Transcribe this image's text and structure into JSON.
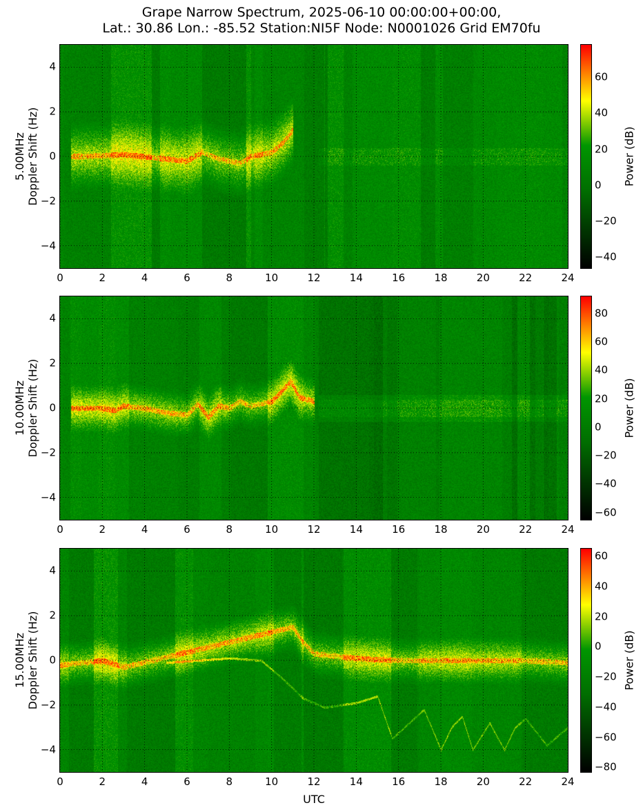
{
  "title_line1": "Grape Narrow Spectrum, 2025-06-10 00:00:00+00:00,",
  "title_line2": "Lat.: 30.86 Lon.: -85.52 Station:NI5F Node: N0001026 Grid EM70fu",
  "xlabel": "UTC",
  "colors": {
    "low": "#000000",
    "mid_low": "#006400",
    "mid": "#00a000",
    "mid_high": "#ffff00",
    "high": "#ff0000"
  },
  "chart_data": [
    {
      "type": "heatmap",
      "frequency": "5.00MHz",
      "ylabel_line1": "5.00MHz",
      "ylabel_line2": "Doppler Shift (Hz)",
      "xlim": [
        0,
        24
      ],
      "ylim": [
        -5,
        5
      ],
      "xticks": [
        "0",
        "2",
        "4",
        "6",
        "8",
        "10",
        "12",
        "14",
        "16",
        "18",
        "20",
        "22",
        "24"
      ],
      "yticks": [
        "4",
        "2",
        "0",
        "−2",
        "−4"
      ],
      "colorbar_label": "Power (dB)",
      "colorbar_range": [
        -46,
        78
      ],
      "colorbar_ticks": [
        "60",
        "40",
        "20",
        "0",
        "−20",
        "−40"
      ],
      "colorbar_tick_values": [
        60,
        40,
        20,
        0,
        -20,
        -40
      ],
      "grid": true,
      "trace": [
        [
          0.5,
          0
        ],
        [
          2,
          0.05
        ],
        [
          3,
          0.1
        ],
        [
          4,
          0
        ],
        [
          5,
          -0.1
        ],
        [
          6,
          -0.2
        ],
        [
          6.7,
          0.2
        ],
        [
          7.5,
          -0.1
        ],
        [
          8,
          -0.2
        ],
        [
          8.5,
          -0.3
        ],
        [
          9,
          0
        ],
        [
          9.5,
          0.1
        ],
        [
          10,
          0.2
        ],
        [
          10.5,
          0.6
        ],
        [
          11,
          1.2
        ]
      ],
      "activity_end_utc": 12.2
    },
    {
      "type": "heatmap",
      "frequency": "10.00MHz",
      "ylabel_line1": "10.00MHz",
      "ylabel_line2": "Doppler Shift (Hz)",
      "xlim": [
        0,
        24
      ],
      "ylim": [
        -5,
        5
      ],
      "xticks": [
        "0",
        "2",
        "4",
        "6",
        "8",
        "10",
        "12",
        "14",
        "16",
        "18",
        "20",
        "22",
        "24"
      ],
      "yticks": [
        "4",
        "2",
        "0",
        "−2",
        "−4"
      ],
      "colorbar_label": "Power (dB)",
      "colorbar_range": [
        -65,
        92
      ],
      "colorbar_ticks": [
        "80",
        "60",
        "40",
        "20",
        "0",
        "−20",
        "−40",
        "−60"
      ],
      "colorbar_tick_values": [
        80,
        60,
        40,
        20,
        0,
        -20,
        -40,
        -60
      ],
      "grid": true,
      "trace": [
        [
          0.5,
          0
        ],
        [
          2,
          0
        ],
        [
          2.6,
          -0.1
        ],
        [
          3,
          0.1
        ],
        [
          4,
          0
        ],
        [
          5,
          -0.2
        ],
        [
          6,
          -0.3
        ],
        [
          6.5,
          0.2
        ],
        [
          7,
          -0.4
        ],
        [
          7.5,
          0.1
        ],
        [
          8,
          0
        ],
        [
          8.5,
          0.3
        ],
        [
          9,
          0.1
        ],
        [
          10,
          0.3
        ],
        [
          10.9,
          1.2
        ],
        [
          11.3,
          0.5
        ],
        [
          12,
          0.3
        ]
      ],
      "activity_end_utc": 12.2
    },
    {
      "type": "heatmap",
      "frequency": "15.00MHz",
      "ylabel_line1": "15.00MHz",
      "ylabel_line2": "Doppler Shift (Hz)",
      "xlim": [
        0,
        24
      ],
      "ylim": [
        -5,
        5
      ],
      "xticks": [
        "0",
        "2",
        "4",
        "6",
        "8",
        "10",
        "12",
        "14",
        "16",
        "18",
        "20",
        "22",
        "24"
      ],
      "yticks": [
        "4",
        "2",
        "0",
        "−2",
        "−4"
      ],
      "colorbar_label": "Power (dB)",
      "colorbar_range": [
        -83,
        65
      ],
      "colorbar_ticks": [
        "60",
        "40",
        "20",
        "0",
        "−20",
        "−40",
        "−60",
        "−80"
      ],
      "colorbar_tick_values": [
        60,
        40,
        20,
        0,
        -20,
        -40,
        -60,
        -80
      ],
      "grid": true,
      "trace": [
        [
          0,
          -0.2
        ],
        [
          1,
          -0.1
        ],
        [
          2,
          0
        ],
        [
          3,
          -0.3
        ],
        [
          11,
          1.5
        ],
        [
          11.5,
          0.8
        ],
        [
          12,
          0.3
        ],
        [
          13,
          0.2
        ],
        [
          14,
          0.1
        ],
        [
          16,
          0
        ],
        [
          18,
          0
        ],
        [
          20,
          0
        ],
        [
          22,
          0
        ],
        [
          24,
          -0.1
        ]
      ],
      "faint_trace": [
        [
          5,
          -0.1
        ],
        [
          8,
          0.1
        ],
        [
          9.5,
          0
        ],
        [
          10.5,
          -0.8
        ],
        [
          11.5,
          -1.7
        ],
        [
          12.5,
          -2.1
        ],
        [
          14,
          -1.9
        ],
        [
          15,
          -1.6
        ],
        [
          15.7,
          -3.5
        ],
        [
          16.5,
          -2.8
        ],
        [
          17.2,
          -2.2
        ],
        [
          18,
          -4
        ],
        [
          18.5,
          -3
        ],
        [
          19,
          -2.5
        ],
        [
          19.5,
          -4
        ],
        [
          20.3,
          -2.8
        ],
        [
          21,
          -4
        ],
        [
          21.5,
          -3
        ],
        [
          22,
          -2.6
        ],
        [
          23,
          -3.8
        ],
        [
          24,
          -3.0
        ]
      ],
      "activity_end_utc": 24
    }
  ]
}
